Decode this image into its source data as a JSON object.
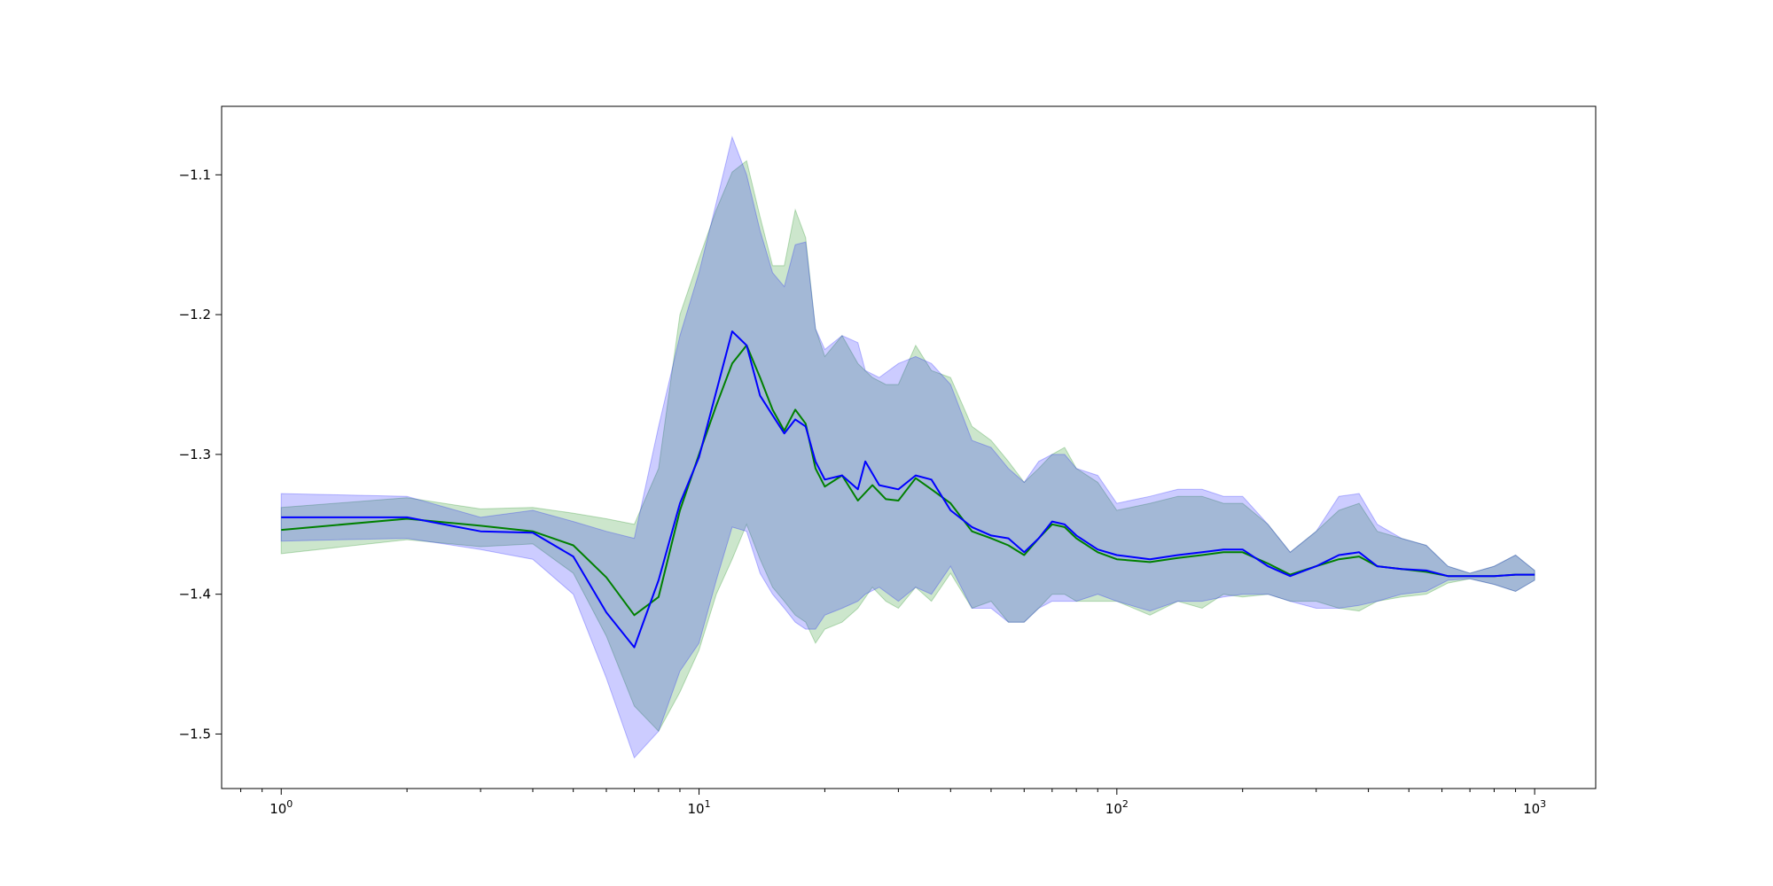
{
  "chart_data": {
    "type": "line",
    "title": "",
    "xlabel": "",
    "ylabel": "",
    "xscale": "log",
    "xlim": [
      0.72,
      1400
    ],
    "ylim": [
      -1.539,
      -1.051
    ],
    "grid": false,
    "legend": "none",
    "x_ticks": [
      {
        "value": 1,
        "base": "10",
        "exp": "0"
      },
      {
        "value": 10,
        "base": "10",
        "exp": "1"
      },
      {
        "value": 100,
        "base": "10",
        "exp": "2"
      },
      {
        "value": 1000,
        "base": "10",
        "exp": "3"
      }
    ],
    "y_ticks": [
      {
        "value": -1.1,
        "label": "−1.1"
      },
      {
        "value": -1.2,
        "label": "−1.2"
      },
      {
        "value": -1.3,
        "label": "−1.3"
      },
      {
        "value": -1.4,
        "label": "−1.4"
      },
      {
        "value": -1.5,
        "label": "−1.5"
      }
    ],
    "series": [
      {
        "color": "#008000",
        "band_opacity": 0.2,
        "points": [
          [
            1,
            -1.354,
            -1.371,
            -1.338
          ],
          [
            2,
            -1.346,
            -1.361,
            -1.331
          ],
          [
            3,
            -1.351,
            -1.366,
            -1.339
          ],
          [
            4,
            -1.355,
            -1.364,
            -1.338
          ],
          [
            5,
            -1.365,
            -1.385,
            -1.342
          ],
          [
            6,
            -1.388,
            -1.43,
            -1.346
          ],
          [
            7,
            -1.415,
            -1.48,
            -1.35
          ],
          [
            8,
            -1.402,
            -1.498,
            -1.31
          ],
          [
            9,
            -1.34,
            -1.47,
            -1.2
          ],
          [
            10,
            -1.3,
            -1.44,
            -1.16
          ],
          [
            11,
            -1.265,
            -1.4,
            -1.125
          ],
          [
            12,
            -1.235,
            -1.375,
            -1.098
          ],
          [
            13,
            -1.222,
            -1.35,
            -1.09
          ],
          [
            14,
            -1.245,
            -1.375,
            -1.13
          ],
          [
            15,
            -1.268,
            -1.395,
            -1.165
          ],
          [
            16,
            -1.283,
            -1.405,
            -1.165
          ],
          [
            17,
            -1.268,
            -1.415,
            -1.125
          ],
          [
            18,
            -1.278,
            -1.42,
            -1.145
          ],
          [
            19,
            -1.31,
            -1.435,
            -1.21
          ],
          [
            20,
            -1.323,
            -1.425,
            -1.23
          ],
          [
            22,
            -1.315,
            -1.42,
            -1.215
          ],
          [
            24,
            -1.333,
            -1.41,
            -1.235
          ],
          [
            26,
            -1.322,
            -1.395,
            -1.245
          ],
          [
            28,
            -1.332,
            -1.405,
            -1.25
          ],
          [
            30,
            -1.333,
            -1.41,
            -1.25
          ],
          [
            33,
            -1.317,
            -1.395,
            -1.222
          ],
          [
            36,
            -1.325,
            -1.405,
            -1.24
          ],
          [
            40,
            -1.335,
            -1.385,
            -1.245
          ],
          [
            45,
            -1.355,
            -1.41,
            -1.28
          ],
          [
            50,
            -1.36,
            -1.405,
            -1.29
          ],
          [
            55,
            -1.365,
            -1.42,
            -1.305
          ],
          [
            60,
            -1.372,
            -1.42,
            -1.32
          ],
          [
            65,
            -1.36,
            -1.41,
            -1.31
          ],
          [
            70,
            -1.35,
            -1.4,
            -1.3
          ],
          [
            75,
            -1.352,
            -1.4,
            -1.295
          ],
          [
            80,
            -1.36,
            -1.405,
            -1.31
          ],
          [
            90,
            -1.37,
            -1.405,
            -1.32
          ],
          [
            100,
            -1.375,
            -1.405,
            -1.34
          ],
          [
            120,
            -1.377,
            -1.415,
            -1.335
          ],
          [
            140,
            -1.374,
            -1.405,
            -1.33
          ],
          [
            160,
            -1.372,
            -1.41,
            -1.33
          ],
          [
            180,
            -1.37,
            -1.4,
            -1.335
          ],
          [
            200,
            -1.37,
            -1.402,
            -1.335
          ],
          [
            230,
            -1.378,
            -1.4,
            -1.35
          ],
          [
            260,
            -1.386,
            -1.405,
            -1.37
          ],
          [
            300,
            -1.38,
            -1.405,
            -1.355
          ],
          [
            340,
            -1.375,
            -1.41,
            -1.34
          ],
          [
            380,
            -1.373,
            -1.412,
            -1.335
          ],
          [
            420,
            -1.38,
            -1.405,
            -1.355
          ],
          [
            480,
            -1.382,
            -1.402,
            -1.36
          ],
          [
            550,
            -1.384,
            -1.4,
            -1.365
          ],
          [
            620,
            -1.387,
            -1.392,
            -1.38
          ],
          [
            700,
            -1.387,
            -1.389,
            -1.385
          ],
          [
            800,
            -1.387,
            -1.393,
            -1.38
          ],
          [
            900,
            -1.386,
            -1.398,
            -1.372
          ],
          [
            1000,
            -1.386,
            -1.39,
            -1.383
          ]
        ]
      },
      {
        "color": "#0000ff",
        "band_opacity": 0.2,
        "points": [
          [
            1,
            -1.345,
            -1.362,
            -1.328
          ],
          [
            2,
            -1.345,
            -1.36,
            -1.33
          ],
          [
            3,
            -1.355,
            -1.368,
            -1.345
          ],
          [
            4,
            -1.356,
            -1.375,
            -1.34
          ],
          [
            5,
            -1.373,
            -1.4,
            -1.348
          ],
          [
            6,
            -1.413,
            -1.46,
            -1.355
          ],
          [
            7,
            -1.438,
            -1.517,
            -1.36
          ],
          [
            8,
            -1.39,
            -1.498,
            -1.28
          ],
          [
            9,
            -1.335,
            -1.455,
            -1.215
          ],
          [
            10,
            -1.302,
            -1.435,
            -1.17
          ],
          [
            11,
            -1.255,
            -1.39,
            -1.12
          ],
          [
            12,
            -1.212,
            -1.352,
            -1.073
          ],
          [
            13,
            -1.222,
            -1.355,
            -1.1
          ],
          [
            14,
            -1.258,
            -1.385,
            -1.14
          ],
          [
            15,
            -1.272,
            -1.4,
            -1.17
          ],
          [
            16,
            -1.285,
            -1.41,
            -1.18
          ],
          [
            17,
            -1.275,
            -1.42,
            -1.15
          ],
          [
            18,
            -1.28,
            -1.425,
            -1.148
          ],
          [
            19,
            -1.305,
            -1.425,
            -1.21
          ],
          [
            20,
            -1.318,
            -1.415,
            -1.225
          ],
          [
            22,
            -1.315,
            -1.41,
            -1.215
          ],
          [
            24,
            -1.325,
            -1.405,
            -1.22
          ],
          [
            25,
            -1.305,
            -1.4,
            -1.24
          ],
          [
            27,
            -1.322,
            -1.395,
            -1.245
          ],
          [
            30,
            -1.325,
            -1.405,
            -1.235
          ],
          [
            33,
            -1.315,
            -1.395,
            -1.23
          ],
          [
            36,
            -1.318,
            -1.4,
            -1.235
          ],
          [
            40,
            -1.34,
            -1.38,
            -1.25
          ],
          [
            45,
            -1.352,
            -1.41,
            -1.29
          ],
          [
            50,
            -1.358,
            -1.41,
            -1.295
          ],
          [
            55,
            -1.36,
            -1.42,
            -1.31
          ],
          [
            60,
            -1.37,
            -1.42,
            -1.32
          ],
          [
            65,
            -1.36,
            -1.41,
            -1.305
          ],
          [
            70,
            -1.348,
            -1.405,
            -1.3
          ],
          [
            75,
            -1.35,
            -1.405,
            -1.3
          ],
          [
            80,
            -1.358,
            -1.405,
            -1.31
          ],
          [
            90,
            -1.368,
            -1.4,
            -1.315
          ],
          [
            100,
            -1.372,
            -1.405,
            -1.335
          ],
          [
            120,
            -1.375,
            -1.412,
            -1.33
          ],
          [
            140,
            -1.372,
            -1.405,
            -1.325
          ],
          [
            160,
            -1.37,
            -1.405,
            -1.325
          ],
          [
            180,
            -1.368,
            -1.402,
            -1.33
          ],
          [
            200,
            -1.368,
            -1.4,
            -1.33
          ],
          [
            230,
            -1.38,
            -1.4,
            -1.35
          ],
          [
            260,
            -1.387,
            -1.405,
            -1.37
          ],
          [
            300,
            -1.38,
            -1.41,
            -1.355
          ],
          [
            340,
            -1.372,
            -1.41,
            -1.33
          ],
          [
            380,
            -1.37,
            -1.408,
            -1.328
          ],
          [
            420,
            -1.38,
            -1.405,
            -1.35
          ],
          [
            480,
            -1.382,
            -1.4,
            -1.36
          ],
          [
            550,
            -1.383,
            -1.398,
            -1.365
          ],
          [
            620,
            -1.387,
            -1.39,
            -1.38
          ],
          [
            700,
            -1.387,
            -1.389,
            -1.385
          ],
          [
            800,
            -1.387,
            -1.393,
            -1.38
          ],
          [
            900,
            -1.386,
            -1.398,
            -1.372
          ],
          [
            1000,
            -1.386,
            -1.39,
            -1.383
          ]
        ]
      }
    ]
  }
}
